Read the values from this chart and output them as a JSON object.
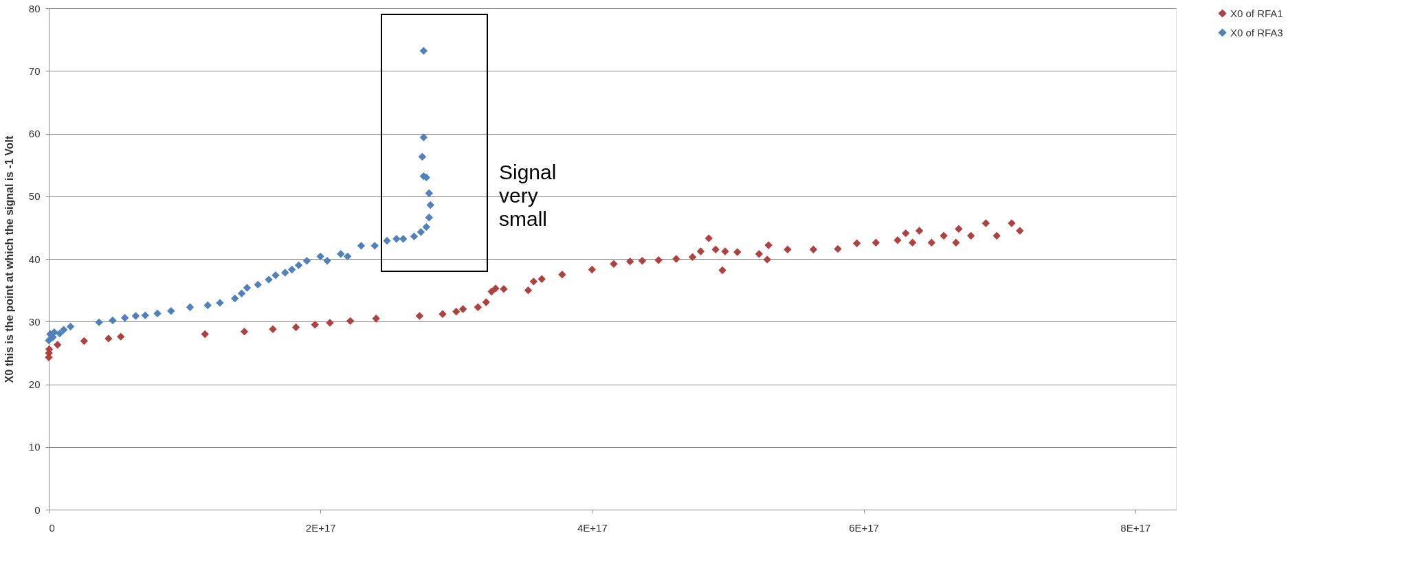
{
  "chart_data": {
    "type": "scatter",
    "ylabel": "X0    this is the point at which the signal is -1 Volt",
    "xlim": [
      0,
      8.3e+17
    ],
    "xticks": [
      {
        "value": 0,
        "label": "0"
      },
      {
        "value": 2e+17,
        "label": "2E+17"
      },
      {
        "value": 4e+17,
        "label": "4E+17"
      },
      {
        "value": 6e+17,
        "label": "6E+17"
      },
      {
        "value": 8e+17,
        "label": "8E+17"
      }
    ],
    "ylim": [
      0,
      80
    ],
    "yticks": [
      0,
      10,
      20,
      30,
      40,
      50,
      60,
      70,
      80
    ],
    "grid": "y",
    "legend": "right",
    "marker": "diamond",
    "annotations": [
      "Signal very small"
    ],
    "series": [
      {
        "name": "X0 of RFA1",
        "color": "#b0413e",
        "x": [
          0,
          100000000000000.0,
          300000000000000.0,
          6400000000000000.0,
          2.6e+16,
          4.4e+16,
          5.3e+16,
          1.15e+17,
          1.44e+17,
          1.65e+17,
          1.82e+17,
          1.96e+17,
          2.07e+17,
          2.22e+17,
          2.41e+17,
          2.73e+17,
          2.9e+17,
          3e+17,
          3.05e+17,
          3.16e+17,
          3.22e+17,
          3.26e+17,
          3.29e+17,
          3.35e+17,
          3.53e+17,
          3.57e+17,
          3.63e+17,
          3.78e+17,
          4e+17,
          4.16e+17,
          4.28e+17,
          4.37e+17,
          4.49e+17,
          4.62e+17,
          4.74e+17,
          4.8e+17,
          4.86e+17,
          4.91e+17,
          4.96e+17,
          4.98e+17,
          5.07e+17,
          5.23e+17,
          5.29e+17,
          5.3e+17,
          5.44e+17,
          5.63e+17,
          5.81e+17,
          5.95e+17,
          6.09e+17,
          6.25e+17,
          6.31e+17,
          6.36e+17,
          6.41e+17,
          6.5e+17,
          6.59e+17,
          6.68e+17,
          6.7e+17,
          6.79e+17,
          6.9e+17,
          6.98e+17,
          7.09e+17,
          7.15e+17
        ],
        "values": [
          24.3,
          25,
          25.6,
          26.3,
          26.9,
          27.3,
          27.6,
          28,
          28.4,
          28.8,
          29.1,
          29.5,
          29.8,
          30.1,
          30.5,
          30.9,
          31.2,
          31.6,
          32,
          32.3,
          33.1,
          34.8,
          35.3,
          35.2,
          35,
          36.4,
          36.8,
          37.5,
          38.3,
          39.2,
          39.6,
          39.7,
          39.8,
          40,
          40.3,
          41.2,
          43.3,
          41.5,
          38.2,
          41.2,
          41.1,
          40.8,
          39.9,
          42.2,
          41.5,
          41.5,
          41.6,
          42.5,
          42.6,
          43,
          44.1,
          42.6,
          44.5,
          42.6,
          43.7,
          42.6,
          44.8,
          43.7,
          45.7,
          43.7,
          45.7,
          44.5
        ]
      },
      {
        "name": "X0 of RFA3",
        "color": "#4f81bd",
        "x": [
          0,
          1000000000000000.0,
          3000000000000000.0,
          4000000000000000.0,
          8000000000000000.0,
          1.1e+16,
          1.6e+16,
          3.7e+16,
          4.7e+16,
          5.6e+16,
          6.4e+16,
          7.1e+16,
          8e+16,
          9e+16,
          1.04e+17,
          1.17e+17,
          1.26e+17,
          1.37e+17,
          1.42e+17,
          1.46e+17,
          1.54e+17,
          1.62e+17,
          1.67e+17,
          1.74e+17,
          1.79e+17,
          1.84e+17,
          1.9e+17,
          2e+17,
          2.05e+17,
          2.15e+17,
          2.2e+17,
          2.3e+17,
          2.4e+17,
          2.49e+17,
          2.56e+17,
          2.61e+17,
          2.69e+17,
          2.74e+17,
          2.78e+17,
          2.8e+17,
          2.81e+17,
          2.8e+17,
          2.78e+17,
          2.76e+17,
          2.75e+17,
          2.76e+17,
          2.76e+17
        ],
        "values": [
          27,
          28,
          27.5,
          28.3,
          28.1,
          28.7,
          29.2,
          29.9,
          30.2,
          30.6,
          30.9,
          31,
          31.3,
          31.7,
          32.3,
          32.6,
          33,
          33.7,
          34.5,
          35.4,
          35.9,
          36.7,
          37.4,
          37.8,
          38.3,
          39,
          39.7,
          40.4,
          39.7,
          40.8,
          40.4,
          42.1,
          42.1,
          42.9,
          43.2,
          43.2,
          43.6,
          44.3,
          45.1,
          46.6,
          48.6,
          50.5,
          53,
          53.2,
          56.3,
          59.4,
          73.2
        ]
      }
    ]
  }
}
